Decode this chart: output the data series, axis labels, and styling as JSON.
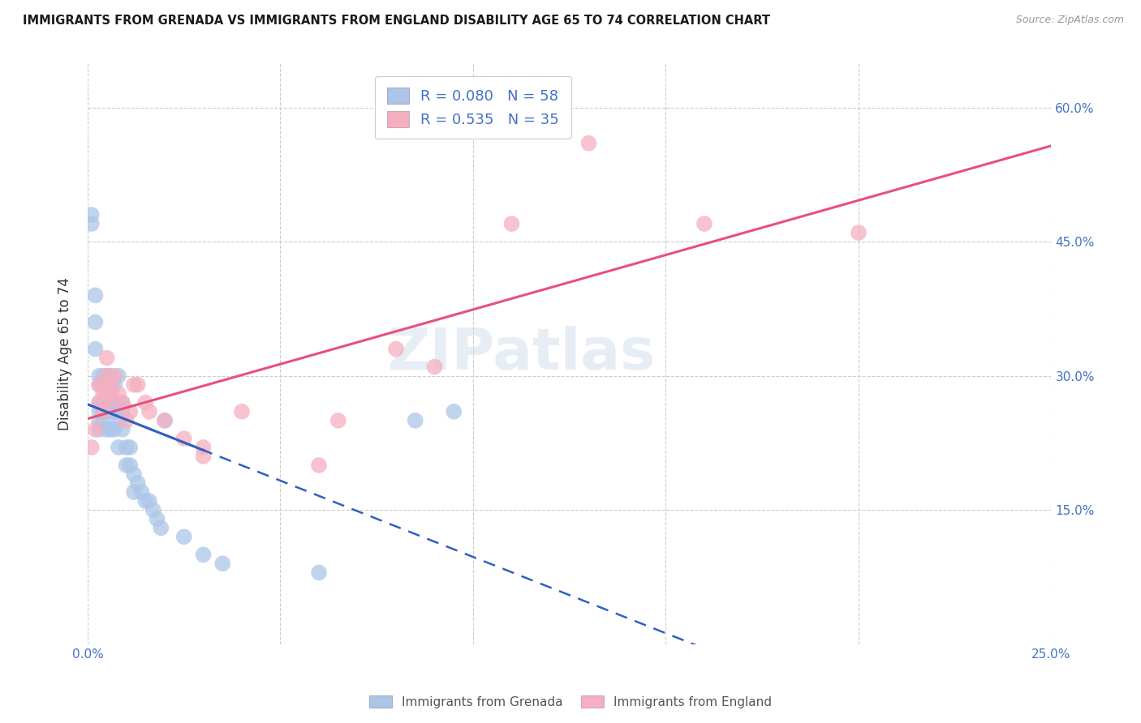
{
  "title": "IMMIGRANTS FROM GRENADA VS IMMIGRANTS FROM ENGLAND DISABILITY AGE 65 TO 74 CORRELATION CHART",
  "source": "Source: ZipAtlas.com",
  "ylabel": "Disability Age 65 to 74",
  "x_min": 0.0,
  "x_max": 0.25,
  "y_min": 0.0,
  "y_max": 0.65,
  "x_ticks": [
    0.0,
    0.05,
    0.1,
    0.15,
    0.2,
    0.25
  ],
  "x_tick_labels": [
    "0.0%",
    "",
    "",
    "",
    "",
    "25.0%"
  ],
  "y_ticks": [
    0.0,
    0.15,
    0.3,
    0.45,
    0.6
  ],
  "y_tick_labels_right": [
    "",
    "15.0%",
    "30.0%",
    "45.0%",
    "60.0%"
  ],
  "grenada_R": 0.08,
  "grenada_N": 58,
  "england_R": 0.535,
  "england_N": 35,
  "grenada_color": "#adc6e8",
  "england_color": "#f5afc0",
  "grenada_line_color": "#3060c0",
  "england_line_color": "#e8507a",
  "watermark": "ZIPatlas",
  "grenada_x": [
    0.001,
    0.001,
    0.002,
    0.002,
    0.002,
    0.003,
    0.003,
    0.003,
    0.003,
    0.003,
    0.003,
    0.004,
    0.004,
    0.004,
    0.004,
    0.004,
    0.005,
    0.005,
    0.005,
    0.005,
    0.005,
    0.005,
    0.006,
    0.006,
    0.006,
    0.006,
    0.006,
    0.007,
    0.007,
    0.007,
    0.007,
    0.008,
    0.008,
    0.008,
    0.008,
    0.009,
    0.009,
    0.009,
    0.01,
    0.01,
    0.011,
    0.011,
    0.012,
    0.012,
    0.013,
    0.014,
    0.015,
    0.016,
    0.017,
    0.018,
    0.019,
    0.02,
    0.025,
    0.03,
    0.035,
    0.06,
    0.085,
    0.095
  ],
  "grenada_y": [
    0.48,
    0.47,
    0.39,
    0.36,
    0.33,
    0.3,
    0.29,
    0.27,
    0.26,
    0.25,
    0.24,
    0.3,
    0.29,
    0.27,
    0.26,
    0.25,
    0.3,
    0.29,
    0.28,
    0.27,
    0.26,
    0.24,
    0.3,
    0.29,
    0.27,
    0.26,
    0.24,
    0.29,
    0.27,
    0.26,
    0.24,
    0.3,
    0.27,
    0.25,
    0.22,
    0.27,
    0.26,
    0.24,
    0.22,
    0.2,
    0.22,
    0.2,
    0.19,
    0.17,
    0.18,
    0.17,
    0.16,
    0.16,
    0.15,
    0.14,
    0.13,
    0.25,
    0.12,
    0.1,
    0.09,
    0.08,
    0.25,
    0.26
  ],
  "england_x": [
    0.001,
    0.002,
    0.003,
    0.003,
    0.004,
    0.004,
    0.004,
    0.005,
    0.005,
    0.005,
    0.005,
    0.006,
    0.006,
    0.007,
    0.008,
    0.009,
    0.01,
    0.011,
    0.012,
    0.013,
    0.015,
    0.016,
    0.02,
    0.025,
    0.03,
    0.03,
    0.04,
    0.06,
    0.065,
    0.08,
    0.09,
    0.11,
    0.13,
    0.16,
    0.2
  ],
  "england_y": [
    0.22,
    0.24,
    0.29,
    0.27,
    0.29,
    0.28,
    0.26,
    0.32,
    0.3,
    0.28,
    0.27,
    0.29,
    0.28,
    0.3,
    0.28,
    0.27,
    0.25,
    0.26,
    0.29,
    0.29,
    0.27,
    0.26,
    0.25,
    0.23,
    0.22,
    0.21,
    0.26,
    0.2,
    0.25,
    0.33,
    0.31,
    0.47,
    0.56,
    0.47,
    0.46
  ]
}
